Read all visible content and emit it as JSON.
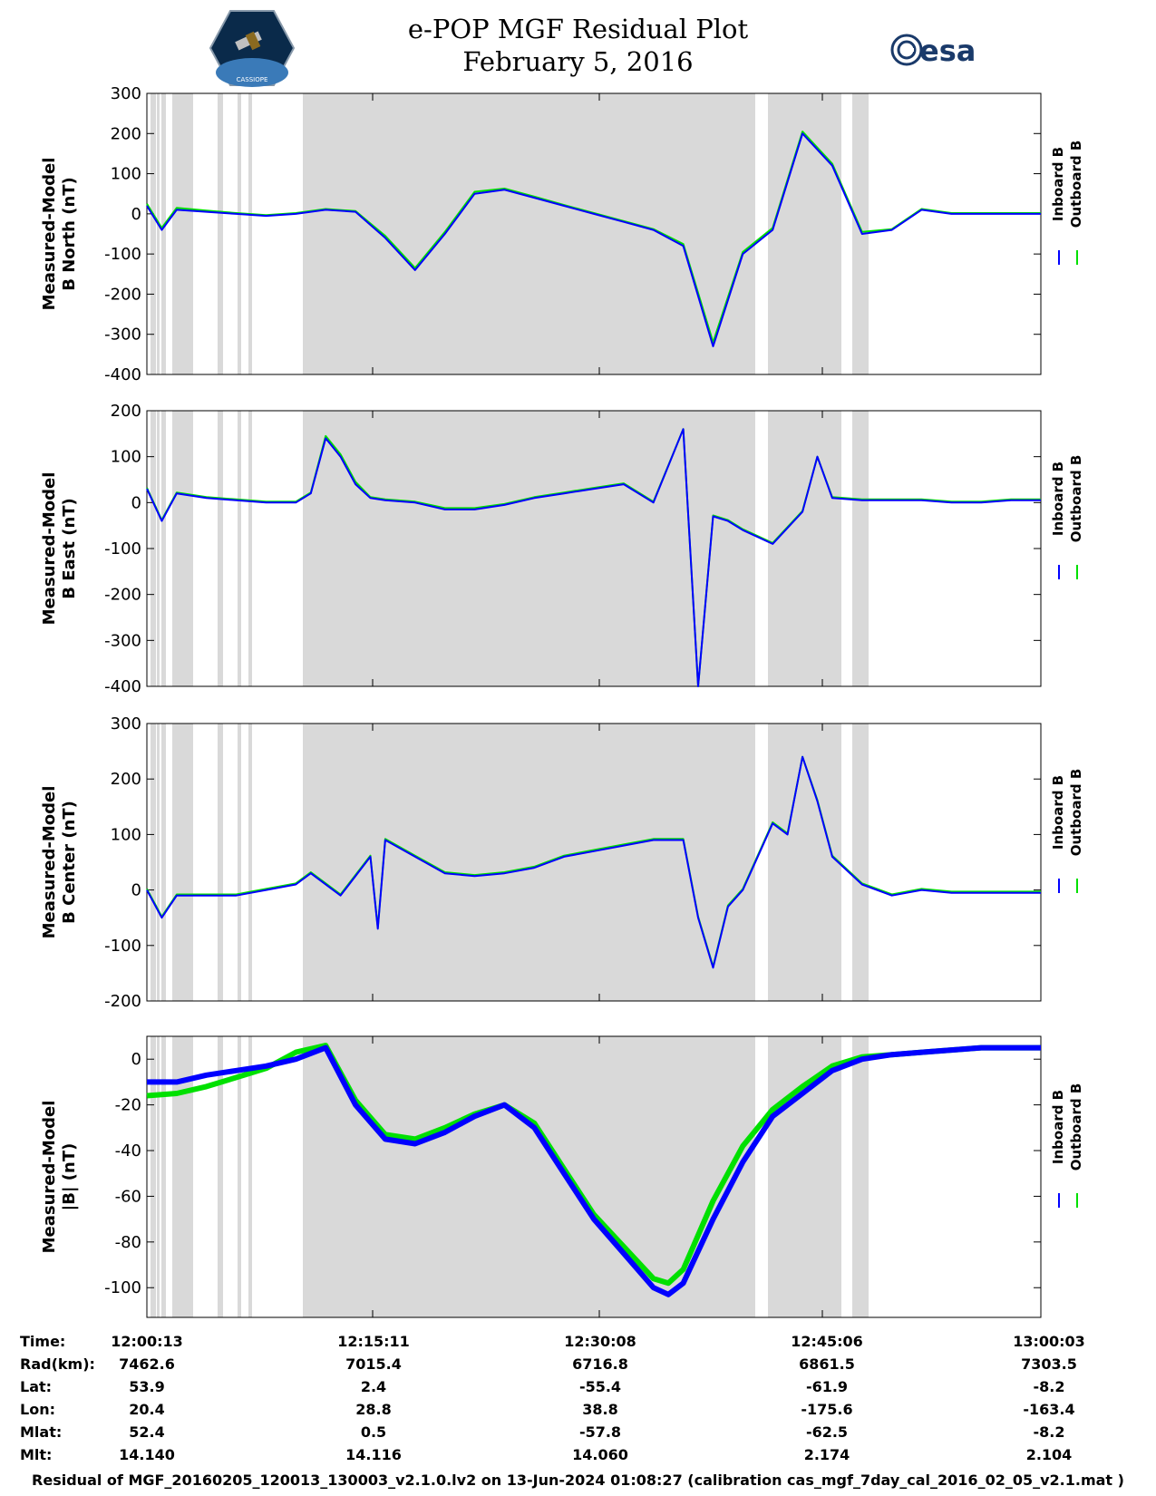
{
  "header": {
    "title": "e-POP MGF Residual Plot",
    "date": "February 5, 2016",
    "mission_logo_text": "CASSIOPE",
    "esa_logo_text": "esa"
  },
  "colors": {
    "inboard": "#0000ff",
    "outboard": "#00e000",
    "shade": "#d9d9d9",
    "shade_dark": "#c8c8c8"
  },
  "chart_data": [
    {
      "type": "line",
      "ylabel_line1": "Measured-Model",
      "ylabel_line2": "B North (nT)",
      "ylim": [
        -400,
        300
      ],
      "yticks": [
        300,
        200,
        100,
        0,
        -100,
        -200,
        -300,
        -400
      ],
      "grid": false,
      "legend": [
        "Inboard B",
        "Outboard B"
      ],
      "legend_position": "right",
      "x_minutes": [
        0,
        1,
        2,
        4,
        6,
        8,
        10,
        12,
        14,
        16,
        18,
        20,
        22,
        24,
        26,
        28,
        30,
        32,
        34,
        36,
        38,
        40,
        42,
        44,
        46,
        48,
        50,
        52,
        54,
        56,
        58,
        60
      ],
      "series": [
        {
          "name": "Inboard B",
          "values": [
            20,
            -40,
            10,
            5,
            0,
            -5,
            0,
            10,
            5,
            -60,
            -140,
            -50,
            50,
            60,
            40,
            20,
            0,
            -20,
            -40,
            -80,
            -330,
            -100,
            -40,
            200,
            120,
            -50,
            -40,
            10,
            0,
            0,
            0,
            0
          ]
        },
        {
          "name": "Outboard B",
          "values": [
            25,
            -35,
            15,
            8,
            2,
            -3,
            2,
            12,
            7,
            -55,
            -135,
            -45,
            55,
            63,
            43,
            22,
            2,
            -18,
            -38,
            -75,
            -320,
            -95,
            -35,
            205,
            125,
            -45,
            -38,
            12,
            2,
            2,
            2,
            2
          ]
        }
      ]
    },
    {
      "type": "line",
      "ylabel_line1": "Measured-Model",
      "ylabel_line2": "B East (nT)",
      "ylim": [
        -400,
        200
      ],
      "yticks": [
        200,
        100,
        0,
        -100,
        -200,
        -300,
        -400
      ],
      "grid": false,
      "legend": [
        "Inboard B",
        "Outboard B"
      ],
      "legend_position": "right",
      "x_minutes": [
        0,
        1,
        2,
        4,
        6,
        8,
        10,
        11,
        12,
        13,
        14,
        15,
        16,
        18,
        20,
        22,
        24,
        26,
        28,
        30,
        32,
        34,
        36,
        37,
        38,
        39,
        40,
        42,
        44,
        45,
        46,
        48,
        50,
        52,
        54,
        56,
        58,
        60
      ],
      "series": [
        {
          "name": "Inboard B",
          "values": [
            30,
            -40,
            20,
            10,
            5,
            0,
            0,
            20,
            140,
            100,
            40,
            10,
            5,
            0,
            -15,
            -15,
            -5,
            10,
            20,
            30,
            40,
            0,
            160,
            -400,
            -30,
            -40,
            -60,
            -90,
            -20,
            100,
            10,
            5,
            5,
            5,
            0,
            0,
            5,
            5
          ]
        },
        {
          "name": "Outboard B",
          "values": [
            32,
            -38,
            22,
            12,
            7,
            2,
            2,
            22,
            145,
            105,
            45,
            12,
            7,
            2,
            -12,
            -12,
            -3,
            12,
            22,
            32,
            42,
            2,
            160,
            -400,
            -28,
            -38,
            -58,
            -88,
            -18,
            100,
            12,
            7,
            7,
            7,
            2,
            2,
            7,
            7
          ]
        }
      ]
    },
    {
      "type": "line",
      "ylabel_line1": "Measured-Model",
      "ylabel_line2": "B Center (nT)",
      "ylim": [
        -200,
        300
      ],
      "yticks": [
        300,
        200,
        100,
        0,
        -100,
        -200
      ],
      "grid": false,
      "legend": [
        "Inboard B",
        "Outboard B"
      ],
      "legend_position": "right",
      "x_minutes": [
        0,
        1,
        2,
        4,
        6,
        8,
        10,
        11,
        13,
        15,
        15.5,
        16,
        18,
        20,
        22,
        24,
        26,
        28,
        30,
        32,
        34,
        36,
        37,
        38,
        39,
        40,
        42,
        43,
        44,
        45,
        46,
        48,
        50,
        52,
        54,
        56,
        58,
        60
      ],
      "series": [
        {
          "name": "Inboard B",
          "values": [
            0,
            -50,
            -10,
            -10,
            -10,
            0,
            10,
            30,
            -10,
            60,
            -70,
            90,
            60,
            30,
            25,
            30,
            40,
            60,
            70,
            80,
            90,
            90,
            -50,
            -140,
            -30,
            0,
            120,
            100,
            240,
            160,
            60,
            10,
            -10,
            0,
            -5,
            -5,
            -5,
            -5
          ]
        },
        {
          "name": "Outboard B",
          "values": [
            2,
            -48,
            -8,
            -8,
            -8,
            2,
            12,
            32,
            -8,
            62,
            -68,
            92,
            62,
            32,
            27,
            32,
            42,
            62,
            72,
            82,
            92,
            92,
            -48,
            -138,
            -28,
            2,
            122,
            102,
            240,
            162,
            62,
            12,
            -8,
            2,
            -3,
            -3,
            -3,
            -3
          ]
        }
      ]
    },
    {
      "type": "line",
      "ylabel_line1": "Measured-Model",
      "ylabel_line2": "|B| (nT)",
      "ylim": [
        -113,
        10
      ],
      "yticks": [
        0,
        -20,
        -40,
        -60,
        -80,
        -100
      ],
      "grid": false,
      "legend": [
        "Inboard B",
        "Outboard B"
      ],
      "legend_position": "right",
      "x_minutes": [
        0,
        2,
        4,
        6,
        8,
        10,
        12,
        14,
        16,
        18,
        20,
        22,
        24,
        26,
        28,
        30,
        32,
        34,
        35,
        36,
        38,
        40,
        42,
        44,
        46,
        48,
        50,
        52,
        54,
        56,
        58,
        60
      ],
      "series": [
        {
          "name": "Inboard B",
          "values": [
            -10,
            -10,
            -7,
            -5,
            -3,
            0,
            5,
            -20,
            -35,
            -37,
            -32,
            -25,
            -20,
            -30,
            -50,
            -70,
            -85,
            -100,
            -103,
            -98,
            -70,
            -45,
            -25,
            -15,
            -5,
            0,
            2,
            3,
            4,
            5,
            5,
            5
          ]
        },
        {
          "name": "Outboard B",
          "values": [
            -16,
            -15,
            -12,
            -8,
            -4,
            3,
            6,
            -18,
            -33,
            -35,
            -30,
            -24,
            -20,
            -28,
            -48,
            -68,
            -82,
            -96,
            -98,
            -92,
            -62,
            -38,
            -22,
            -12,
            -3,
            1,
            2,
            3,
            4,
            5,
            5,
            5
          ]
        }
      ]
    }
  ],
  "ephemeris": {
    "labels": [
      "Time:",
      "Rad(km):",
      "Lat:",
      "Lon:",
      "Mlat:",
      "Mlt:"
    ],
    "columns": [
      [
        "12:00:13",
        "7462.6",
        "53.9",
        "20.4",
        "52.4",
        "14.140"
      ],
      [
        "12:15:11",
        "7015.4",
        "2.4",
        "28.8",
        "0.5",
        "14.116"
      ],
      [
        "12:30:08",
        "6716.8",
        "-55.4",
        "38.8",
        "-57.8",
        "14.060"
      ],
      [
        "12:45:06",
        "6861.5",
        "-61.9",
        "-175.6",
        "-62.5",
        "2.174"
      ],
      [
        "13:00:03",
        "7303.5",
        "-8.2",
        "-163.4",
        "-8.2",
        "2.104"
      ]
    ]
  },
  "footer": {
    "text": "Residual of MGF_20160205_120013_130003_v2.1.0.lv2 on 13-Jun-2024 01:08:27 (calibration cas_mgf_7day_cal_2016_02_05_v2.1.mat )"
  }
}
